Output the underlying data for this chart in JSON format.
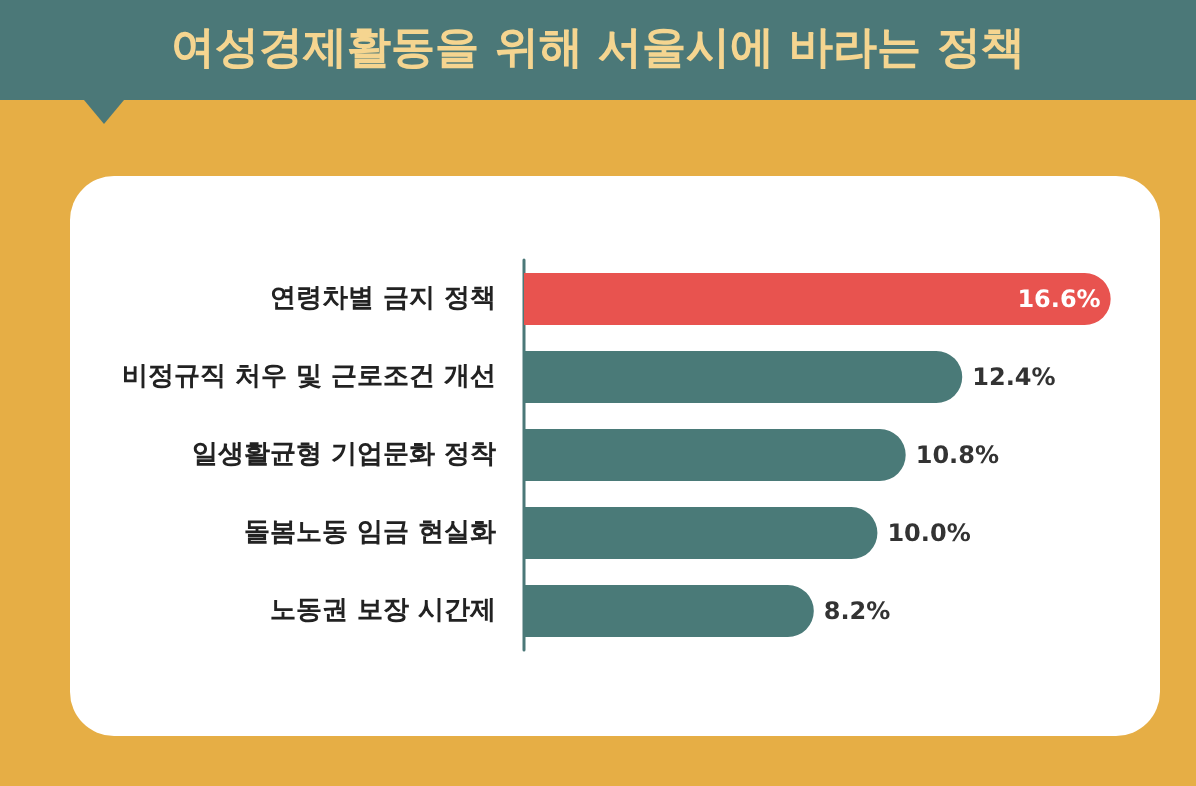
{
  "chart_data": {
    "type": "bar",
    "orientation": "horizontal",
    "title": "여성경제활동을 위해 서울시에 바라는 정책",
    "categories": [
      "연령차별 금지 정책",
      "비정규직 처우 및 근로조건 개선",
      "일생활균형 기업문화 정착",
      "돌봄노동 임금 현실화",
      "노동권 보장 시간제"
    ],
    "values": [
      16.6,
      12.4,
      10.8,
      10.0,
      8.2
    ],
    "colors": [
      "#e8534f",
      "#4a7a78",
      "#4a7a78",
      "#4a7a78",
      "#4a7a78"
    ],
    "value_labels": [
      "16.6%",
      "12.4%",
      "10.8%",
      "10.0%",
      "8.2%"
    ]
  }
}
